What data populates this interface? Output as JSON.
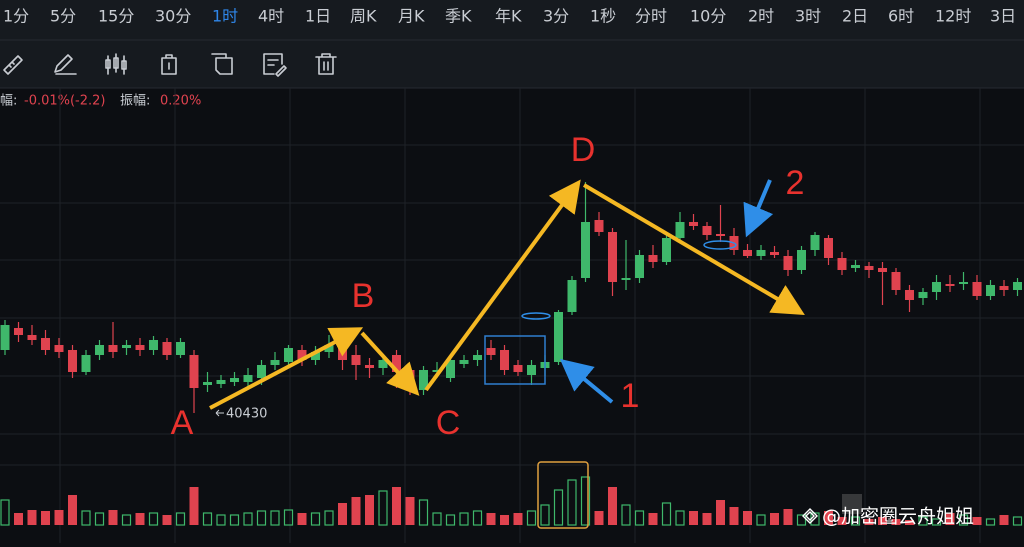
{
  "tabs": [
    "1分",
    "5分",
    "15分",
    "30分",
    "1时",
    "4时",
    "1日",
    "周K",
    "月K",
    "季K",
    "年K",
    "3分",
    "1秒",
    "分时",
    "10分",
    "2时",
    "3时",
    "2日",
    "6时",
    "12时",
    "3日"
  ],
  "active_tab": 4,
  "info": {
    "change_label": "幅:",
    "change_value": "-0.01%(-2.2)",
    "amplitude_label": "振幅:",
    "amplitude_value": "0.20%"
  },
  "annotations": {
    "a": "A",
    "b": "B",
    "c": "C",
    "d": "D",
    "one": "1",
    "two": "2",
    "price_label": "40430"
  },
  "watermark": "@加密圈云舟姐姐",
  "chart_data": {
    "type": "candlestick",
    "ylim": [
      40202,
      41722
    ],
    "up_color": "#3fb86b",
    "down_color": "#e0434f",
    "ohlc": [
      [
        40682,
        40802,
        40662,
        40782
      ],
      [
        40770,
        40794,
        40714,
        40742
      ],
      [
        40742,
        40782,
        40702,
        40722
      ],
      [
        40730,
        40762,
        40662,
        40682
      ],
      [
        40702,
        40730,
        40650,
        40674
      ],
      [
        40682,
        40702,
        40570,
        40594
      ],
      [
        40594,
        40682,
        40582,
        40662
      ],
      [
        40662,
        40722,
        40642,
        40702
      ],
      [
        40702,
        40794,
        40650,
        40674
      ],
      [
        40690,
        40722,
        40662,
        40702
      ],
      [
        40702,
        40730,
        40658,
        40682
      ],
      [
        40682,
        40738,
        40662,
        40722
      ],
      [
        40714,
        40730,
        40642,
        40662
      ],
      [
        40662,
        40730,
        40650,
        40714
      ],
      [
        40662,
        40682,
        40430,
        40530
      ],
      [
        40542,
        40594,
        40514,
        40554
      ],
      [
        40546,
        40582,
        40530,
        40562
      ],
      [
        40554,
        40594,
        40538,
        40570
      ],
      [
        40554,
        40610,
        40530,
        40582
      ],
      [
        40570,
        40642,
        40542,
        40622
      ],
      [
        40622,
        40674,
        40602,
        40642
      ],
      [
        40634,
        40702,
        40622,
        40690
      ],
      [
        40682,
        40702,
        40618,
        40642
      ],
      [
        40642,
        40698,
        40622,
        40674
      ],
      [
        40674,
        40742,
        40650,
        40702
      ],
      [
        40698,
        40742,
        40602,
        40642
      ],
      [
        40662,
        40702,
        40562,
        40622
      ],
      [
        40622,
        40650,
        40570,
        40610
      ],
      [
        40610,
        40662,
        40582,
        40642
      ],
      [
        40662,
        40682,
        40530,
        40594
      ],
      [
        40602,
        40622,
        40502,
        40522
      ],
      [
        40522,
        40618,
        40502,
        40602
      ],
      [
        40594,
        40634,
        40570,
        40602
      ],
      [
        40570,
        40662,
        40554,
        40642
      ],
      [
        40626,
        40662,
        40610,
        40642
      ],
      [
        40642,
        40682,
        40618,
        40662
      ],
      [
        40690,
        40722,
        40642,
        40662
      ],
      [
        40682,
        40702,
        40582,
        40602
      ],
      [
        40622,
        40642,
        40578,
        40594
      ],
      [
        40582,
        40642,
        40542,
        40622
      ],
      [
        40610,
        40662,
        40578,
        40634
      ],
      [
        40634,
        40842,
        40622,
        40834
      ],
      [
        40834,
        40978,
        40822,
        40962
      ],
      [
        40970,
        41354,
        40954,
        41194
      ],
      [
        41202,
        41234,
        41138,
        41154
      ],
      [
        41154,
        41170,
        40898,
        40954
      ],
      [
        40962,
        41122,
        40922,
        40970
      ],
      [
        40970,
        41082,
        40950,
        41062
      ],
      [
        41062,
        41102,
        41010,
        41034
      ],
      [
        41034,
        41154,
        41022,
        41130
      ],
      [
        41130,
        41234,
        41122,
        41194
      ],
      [
        41194,
        41226,
        41162,
        41178
      ],
      [
        41178,
        41194,
        41122,
        41142
      ],
      [
        41146,
        41262,
        41114,
        41138
      ],
      [
        41138,
        41170,
        41062,
        41082
      ],
      [
        41082,
        41106,
        41050,
        41058
      ],
      [
        41058,
        41102,
        41042,
        41082
      ],
      [
        41074,
        41098,
        41050,
        41062
      ],
      [
        41058,
        41082,
        40978,
        41002
      ],
      [
        41002,
        41098,
        40986,
        41082
      ],
      [
        41082,
        41154,
        41058,
        41142
      ],
      [
        41130,
        41142,
        41022,
        41050
      ],
      [
        41050,
        41074,
        40982,
        41002
      ],
      [
        41010,
        41042,
        40994,
        41022
      ],
      [
        41018,
        41034,
        40970,
        41002
      ],
      [
        41010,
        41034,
        40862,
        40994
      ],
      [
        40994,
        41010,
        40902,
        40922
      ],
      [
        40922,
        40942,
        40834,
        40882
      ],
      [
        40890,
        40930,
        40862,
        40914
      ],
      [
        40914,
        40982,
        40882,
        40954
      ],
      [
        40946,
        40982,
        40914,
        40938
      ],
      [
        40946,
        40994,
        40922,
        40954
      ],
      [
        40954,
        40982,
        40882,
        40898
      ],
      [
        40898,
        40962,
        40882,
        40942
      ],
      [
        40938,
        40962,
        40898,
        40922
      ],
      [
        40922,
        40970,
        40898,
        40954
      ]
    ],
    "volume_lim": [
      0,
      60
    ],
    "volume": [
      25,
      12,
      15,
      14,
      15,
      30,
      14,
      12,
      15,
      10,
      12,
      12,
      10,
      12,
      38,
      12,
      10,
      10,
      12,
      14,
      14,
      15,
      12,
      12,
      14,
      22,
      28,
      30,
      34,
      38,
      28,
      25,
      12,
      10,
      12,
      14,
      12,
      10,
      12,
      14,
      20,
      35,
      45,
      48,
      14,
      38,
      20,
      14,
      12,
      22,
      14,
      14,
      12,
      25,
      18,
      14,
      10,
      12,
      16,
      10,
      12,
      14,
      8,
      8,
      6,
      8,
      6,
      5,
      8,
      6,
      12,
      10,
      8,
      6,
      10,
      8
    ]
  }
}
